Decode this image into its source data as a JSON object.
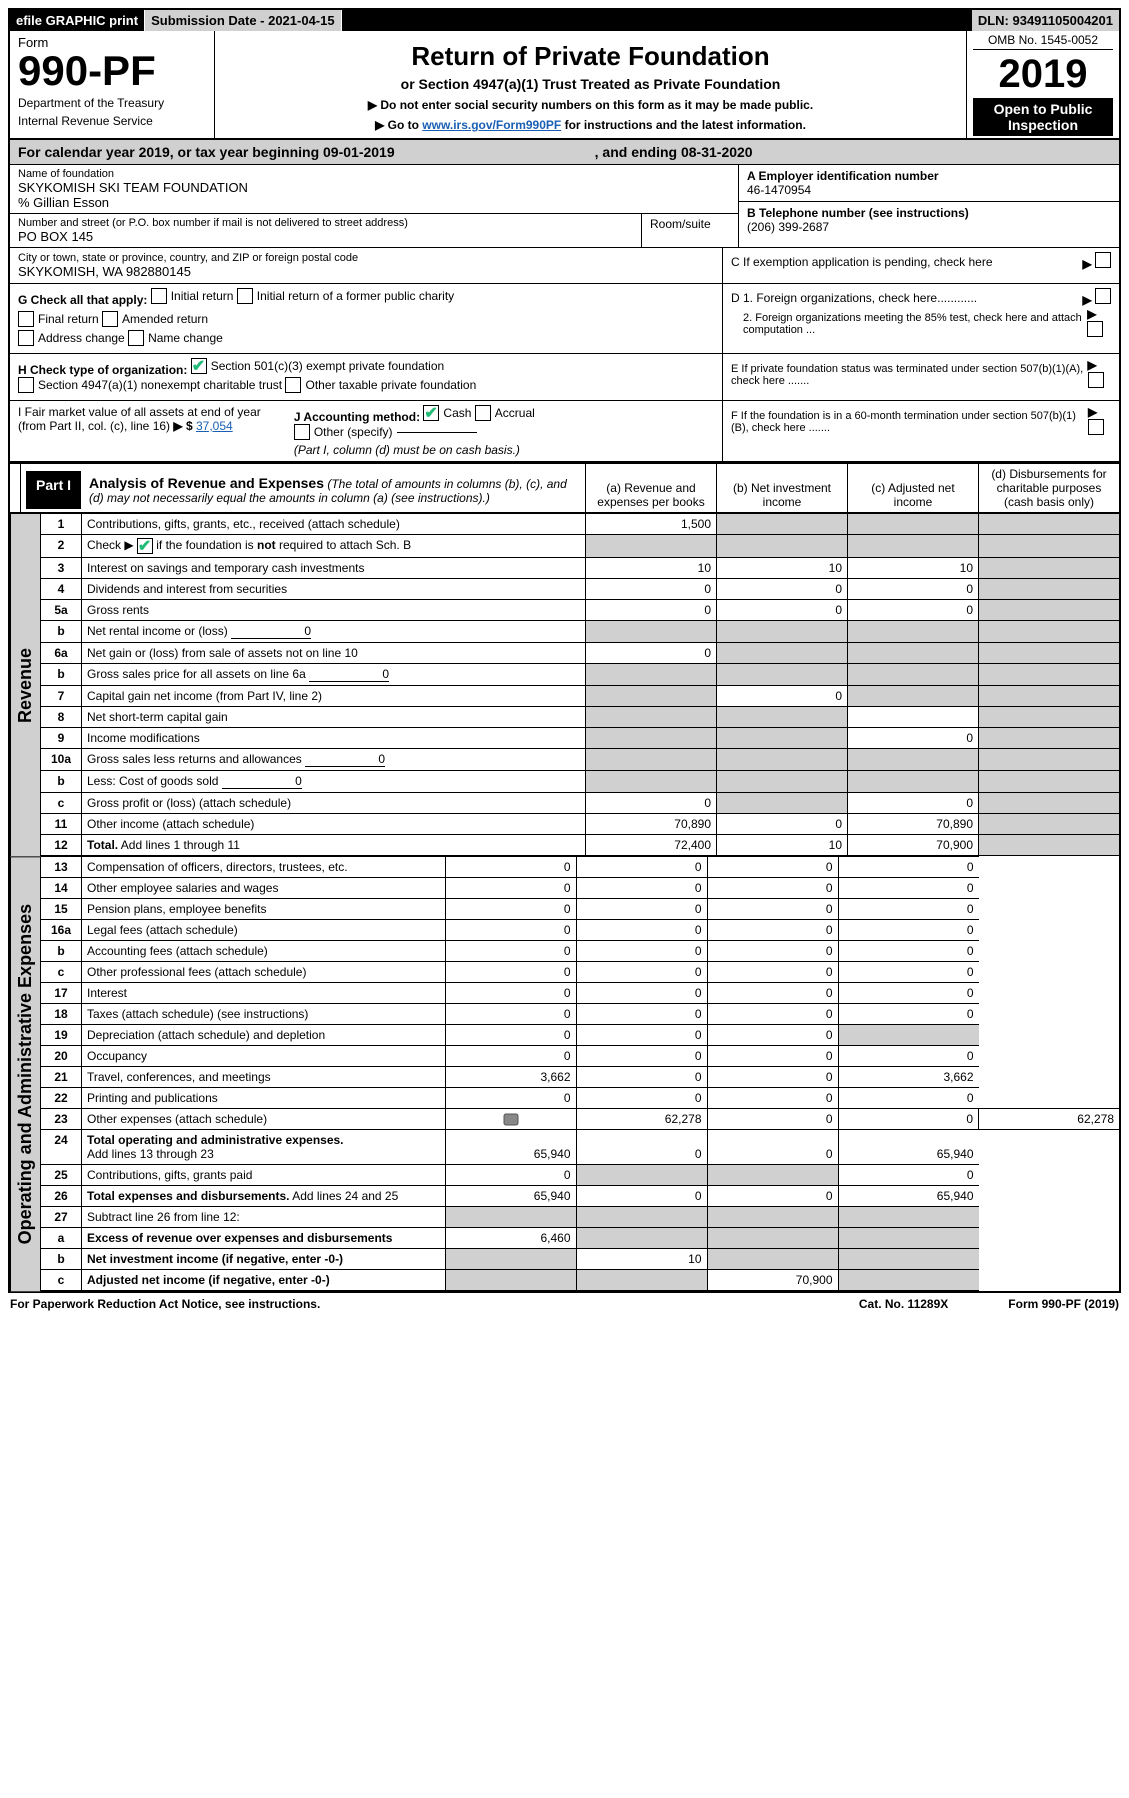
{
  "topbar": {
    "efile": "efile GRAPHIC print",
    "submission": "Submission Date - 2021-04-15",
    "dln": "DLN: 93491105004201"
  },
  "header": {
    "form_label": "Form",
    "form_num": "990-PF",
    "dept1": "Department of the Treasury",
    "dept2": "Internal Revenue Service",
    "title": "Return of Private Foundation",
    "subtitle": "or Section 4947(a)(1) Trust Treated as Private Foundation",
    "instr1": "▶ Do not enter social security numbers on this form as it may be made public.",
    "instr2_pre": "▶ Go to ",
    "instr2_link": "www.irs.gov/Form990PF",
    "instr2_post": " for instructions and the latest information.",
    "omb": "OMB No. 1545-0052",
    "year": "2019",
    "otp": "Open to Public Inspection"
  },
  "cal": {
    "label_pre": "For calendar year 2019, or tax year beginning ",
    "begin": "09-01-2019",
    "label_mid": ", and ending ",
    "end": "08-31-2020"
  },
  "addr": {
    "name_lab": "Name of foundation",
    "name": "SKYKOMISH SKI TEAM FOUNDATION",
    "co": "% Gillian Esson",
    "street_lab": "Number and street (or P.O. box number if mail is not delivered to street address)",
    "street": "PO BOX 145",
    "room_lab": "Room/suite",
    "city_lab": "City or town, state or province, country, and ZIP or foreign postal code",
    "city": "SKYKOMISH, WA   982880145"
  },
  "right": {
    "a_lab": "A Employer identification number",
    "a_val": "46-1470954",
    "b_lab": "B Telephone number (see instructions)",
    "b_val": "(206) 399-2687",
    "c_lab": "C If exemption application is pending, check here",
    "d1": "D 1. Foreign organizations, check here............",
    "d2": "2. Foreign organizations meeting the 85% test, check here and attach computation ...",
    "e": "E  If private foundation status was terminated under section 507(b)(1)(A), check here .......",
    "f": "F  If the foundation is in a 60-month termination under section 507(b)(1)(B), check here .......",
    "g_lab": "G Check all that apply:",
    "g_initial": "Initial return",
    "g_initial_former": "Initial return of a former public charity",
    "g_final": "Final return",
    "g_amended": "Amended return",
    "g_addr": "Address change",
    "g_name": "Name change",
    "h_lab": "H Check type of organization:",
    "h_501c3": "Section 501(c)(3) exempt private foundation",
    "h_4947": "Section 4947(a)(1) nonexempt charitable trust",
    "h_other": "Other taxable private foundation",
    "i_lab": "I Fair market value of all assets at end of year (from Part II, col. (c), line 16)",
    "i_val": "37,054",
    "j_lab": "J Accounting method:",
    "j_cash": "Cash",
    "j_accrual": "Accrual",
    "j_other": "Other (specify)",
    "j_note": "(Part I, column (d) must be on cash basis.)"
  },
  "part1": {
    "label": "Part I",
    "title": "Analysis of Revenue and Expenses",
    "note": "(The total of amounts in columns (b), (c), and (d) may not necessarily equal the amounts in column (a) (see instructions).)",
    "col_a": "(a)   Revenue and expenses per books",
    "col_b": "(b)   Net investment income",
    "col_c": "(c)   Adjusted net income",
    "col_d": "(d)   Disbursements for charitable purposes (cash basis only)",
    "rev_label": "Revenue",
    "oae_label": "Operating and Administrative Expenses"
  },
  "rows": {
    "r1": {
      "ln": "1",
      "desc": "Contributions, gifts, grants, etc., received (attach schedule)",
      "a": "1,500",
      "b": "",
      "c": "",
      "d": ""
    },
    "r2": {
      "ln": "2",
      "desc": "Check ▶ ☑ if the foundation is not required to attach Sch. B",
      "a": "",
      "b": "",
      "c": "",
      "d": ""
    },
    "r3": {
      "ln": "3",
      "desc": "Interest on savings and temporary cash investments",
      "a": "10",
      "b": "10",
      "c": "10",
      "d": ""
    },
    "r4": {
      "ln": "4",
      "desc": "Dividends and interest from securities",
      "a": "0",
      "b": "0",
      "c": "0",
      "d": ""
    },
    "r5a": {
      "ln": "5a",
      "desc": "Gross rents",
      "a": "0",
      "b": "0",
      "c": "0",
      "d": ""
    },
    "r5b": {
      "ln": "b",
      "desc": "Net rental income or (loss)",
      "inline": "0",
      "a": "",
      "b": "",
      "c": "",
      "d": ""
    },
    "r6a": {
      "ln": "6a",
      "desc": "Net gain or (loss) from sale of assets not on line 10",
      "a": "0",
      "b": "",
      "c": "",
      "d": ""
    },
    "r6b": {
      "ln": "b",
      "desc": "Gross sales price for all assets on line 6a",
      "inline": "0",
      "a": "",
      "b": "",
      "c": "",
      "d": ""
    },
    "r7": {
      "ln": "7",
      "desc": "Capital gain net income (from Part IV, line 2)",
      "a": "",
      "b": "0",
      "c": "",
      "d": ""
    },
    "r8": {
      "ln": "8",
      "desc": "Net short-term capital gain",
      "a": "",
      "b": "",
      "c": "",
      "d": ""
    },
    "r9": {
      "ln": "9",
      "desc": "Income modifications",
      "a": "",
      "b": "",
      "c": "0",
      "d": ""
    },
    "r10a": {
      "ln": "10a",
      "desc": "Gross sales less returns and allowances",
      "inline": "0",
      "a": "",
      "b": "",
      "c": "",
      "d": ""
    },
    "r10b": {
      "ln": "b",
      "desc": "Less: Cost of goods sold",
      "inline": "0",
      "a": "",
      "b": "",
      "c": "",
      "d": ""
    },
    "r10c": {
      "ln": "c",
      "desc": "Gross profit or (loss) (attach schedule)",
      "a": "0",
      "b": "",
      "c": "0",
      "d": ""
    },
    "r11": {
      "ln": "11",
      "desc": "Other income (attach schedule)",
      "a": "70,890",
      "b": "0",
      "c": "70,890",
      "d": ""
    },
    "r12": {
      "ln": "12",
      "desc": "Total. Add lines 1 through 11",
      "a": "72,400",
      "b": "10",
      "c": "70,900",
      "d": ""
    },
    "r13": {
      "ln": "13",
      "desc": "Compensation of officers, directors, trustees, etc.",
      "a": "0",
      "b": "0",
      "c": "0",
      "d": "0"
    },
    "r14": {
      "ln": "14",
      "desc": "Other employee salaries and wages",
      "a": "0",
      "b": "0",
      "c": "0",
      "d": "0"
    },
    "r15": {
      "ln": "15",
      "desc": "Pension plans, employee benefits",
      "a": "0",
      "b": "0",
      "c": "0",
      "d": "0"
    },
    "r16a": {
      "ln": "16a",
      "desc": "Legal fees (attach schedule)",
      "a": "0",
      "b": "0",
      "c": "0",
      "d": "0"
    },
    "r16b": {
      "ln": "b",
      "desc": "Accounting fees (attach schedule)",
      "a": "0",
      "b": "0",
      "c": "0",
      "d": "0"
    },
    "r16c": {
      "ln": "c",
      "desc": "Other professional fees (attach schedule)",
      "a": "0",
      "b": "0",
      "c": "0",
      "d": "0"
    },
    "r17": {
      "ln": "17",
      "desc": "Interest",
      "a": "0",
      "b": "0",
      "c": "0",
      "d": "0"
    },
    "r18": {
      "ln": "18",
      "desc": "Taxes (attach schedule) (see instructions)",
      "a": "0",
      "b": "0",
      "c": "0",
      "d": "0"
    },
    "r19": {
      "ln": "19",
      "desc": "Depreciation (attach schedule) and depletion",
      "a": "0",
      "b": "0",
      "c": "0",
      "d": ""
    },
    "r20": {
      "ln": "20",
      "desc": "Occupancy",
      "a": "0",
      "b": "0",
      "c": "0",
      "d": "0"
    },
    "r21": {
      "ln": "21",
      "desc": "Travel, conferences, and meetings",
      "a": "3,662",
      "b": "0",
      "c": "0",
      "d": "3,662"
    },
    "r22": {
      "ln": "22",
      "desc": "Printing and publications",
      "a": "0",
      "b": "0",
      "c": "0",
      "d": "0"
    },
    "r23": {
      "ln": "23",
      "desc": "Other expenses (attach schedule)",
      "a": "62,278",
      "b": "0",
      "c": "0",
      "d": "62,278",
      "icon": "1"
    },
    "r24": {
      "ln": "24",
      "desc": "Total operating and administrative expenses. Add lines 13 through 23",
      "a": "65,940",
      "b": "0",
      "c": "0",
      "d": "65,940"
    },
    "r25": {
      "ln": "25",
      "desc": "Contributions, gifts, grants paid",
      "a": "0",
      "b": "",
      "c": "",
      "d": "0"
    },
    "r26": {
      "ln": "26",
      "desc": "Total expenses and disbursements. Add lines 24 and 25",
      "a": "65,940",
      "b": "0",
      "c": "0",
      "d": "65,940"
    },
    "r27": {
      "ln": "27",
      "desc": "Subtract line 26 from line 12:",
      "a": "",
      "b": "",
      "c": "",
      "d": ""
    },
    "r27a": {
      "ln": "a",
      "desc": "Excess of revenue over expenses and disbursements",
      "a": "6,460",
      "b": "",
      "c": "",
      "d": ""
    },
    "r27b": {
      "ln": "b",
      "desc": "Net investment income (if negative, enter -0-)",
      "a": "",
      "b": "10",
      "c": "",
      "d": ""
    },
    "r27c": {
      "ln": "c",
      "desc": "Adjusted net income (if negative, enter -0-)",
      "a": "",
      "b": "",
      "c": "70,900",
      "d": ""
    }
  },
  "footer": {
    "left": "For Paperwork Reduction Act Notice, see instructions.",
    "cat": "Cat. No. 11289X",
    "form": "Form 990-PF (2019)"
  },
  "colors": {
    "shade": "#d0d0d0",
    "link": "#1a5fb4",
    "check": "#22bb55"
  }
}
